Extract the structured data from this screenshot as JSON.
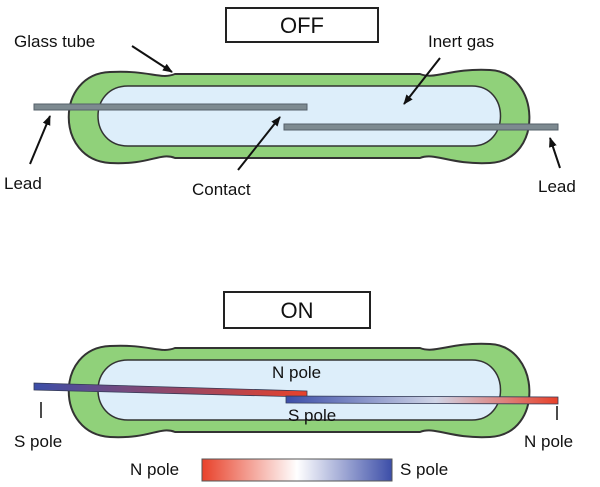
{
  "off": {
    "state_label": "OFF",
    "labels": {
      "glass_tube": "Glass tube",
      "inert_gas": "Inert gas",
      "lead_left": "Lead",
      "contact": "Contact",
      "lead_right": "Lead"
    }
  },
  "on": {
    "state_label": "ON",
    "labels": {
      "n_pole_top": "N pole",
      "s_pole_mid": "S pole",
      "s_pole_left": "S pole",
      "n_pole_right": "N pole"
    }
  },
  "legend": {
    "left_label": "N pole",
    "right_label": "S pole",
    "gradient_colors": [
      "#e8412a",
      "#ffffff",
      "#3c4ea8"
    ]
  },
  "colors": {
    "tube_outer": "#90d17a",
    "tube_inner": "#ddeefa",
    "outline": "#333333",
    "reed_gray": "#7d8a90",
    "n_pole_red": "#e8412a",
    "s_pole_blue": "#3c4ea8"
  }
}
